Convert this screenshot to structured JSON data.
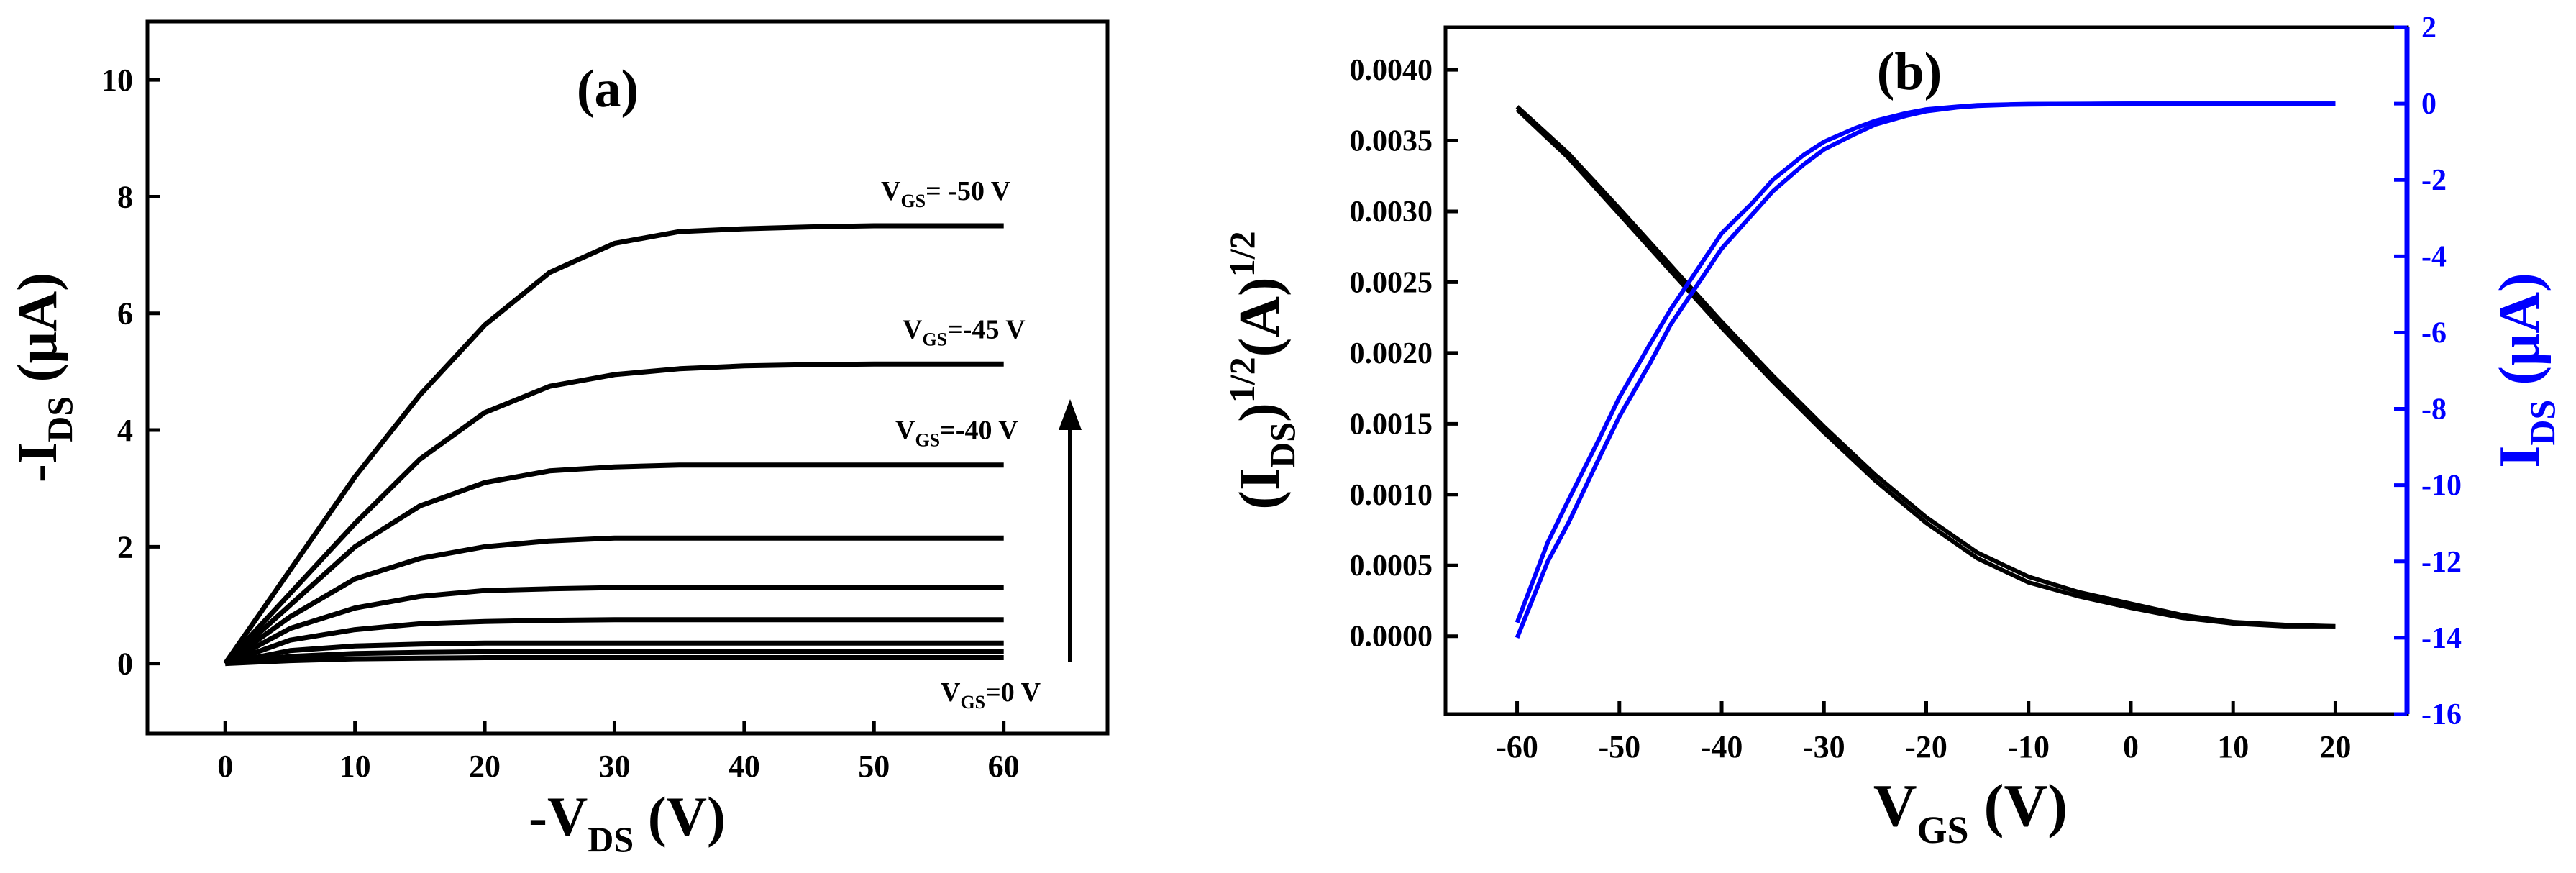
{
  "chart_data": [
    {
      "type": "line",
      "panel_label": "(a)",
      "xlabel": {
        "main": "-V",
        "sub": "DS",
        "unit": " (V)"
      },
      "ylabel": {
        "main": "-I",
        "sub": "DS",
        "unit": " (μA)"
      },
      "xlim": [
        -6,
        68
      ],
      "ylim": [
        -1.2,
        11
      ],
      "xticks": [
        0,
        10,
        20,
        30,
        40,
        50,
        60
      ],
      "yticks": [
        0,
        2,
        4,
        6,
        8,
        10
      ],
      "line_color": "#000000",
      "x": [
        0,
        5,
        10,
        15,
        20,
        25,
        30,
        35,
        40,
        45,
        50,
        55,
        60
      ],
      "series": [
        {
          "label_main": "",
          "label_sub": "",
          "label_val": "",
          "values": [
            0,
            0.05,
            0.08,
            0.09,
            0.1,
            0.1,
            0.1,
            0.1,
            0.1,
            0.1,
            0.1,
            0.1,
            0.1
          ]
        },
        {
          "label_main": "",
          "label_sub": "",
          "label_val": "",
          "values": [
            0,
            0.12,
            0.17,
            0.19,
            0.2,
            0.2,
            0.2,
            0.2,
            0.2,
            0.2,
            0.2,
            0.2,
            0.2
          ]
        },
        {
          "label_main": "",
          "label_sub": "",
          "label_val": "",
          "values": [
            0,
            0.22,
            0.3,
            0.33,
            0.35,
            0.35,
            0.35,
            0.35,
            0.35,
            0.35,
            0.35,
            0.35,
            0.35
          ]
        },
        {
          "label_main": "",
          "label_sub": "",
          "label_val": "",
          "values": [
            0,
            0.4,
            0.58,
            0.68,
            0.72,
            0.74,
            0.75,
            0.75,
            0.75,
            0.75,
            0.75,
            0.75,
            0.75
          ]
        },
        {
          "label_main": "",
          "label_sub": "",
          "label_val": "",
          "values": [
            0,
            0.6,
            0.95,
            1.15,
            1.25,
            1.28,
            1.3,
            1.3,
            1.3,
            1.3,
            1.3,
            1.3,
            1.3
          ]
        },
        {
          "label_main": "",
          "label_sub": "",
          "label_val": "",
          "values": [
            0,
            0.8,
            1.45,
            1.8,
            2.0,
            2.1,
            2.15,
            2.15,
            2.15,
            2.15,
            2.15,
            2.15,
            2.15
          ]
        },
        {
          "label_main": "V",
          "label_sub": "GS",
          "label_val": "=-40 V",
          "values": [
            0,
            1.0,
            2.0,
            2.7,
            3.1,
            3.3,
            3.37,
            3.4,
            3.4,
            3.4,
            3.4,
            3.4,
            3.4
          ]
        },
        {
          "label_main": "V",
          "label_sub": "GS",
          "label_val": "=-45 V",
          "values": [
            0,
            1.2,
            2.4,
            3.5,
            4.3,
            4.75,
            4.95,
            5.05,
            5.1,
            5.12,
            5.13,
            5.13,
            5.13
          ]
        },
        {
          "label_main": "V",
          "label_sub": "GS",
          "label_val": "= -50 V",
          "values": [
            0,
            1.6,
            3.2,
            4.6,
            5.8,
            6.7,
            7.2,
            7.4,
            7.45,
            7.48,
            7.5,
            7.5,
            7.5
          ]
        }
      ],
      "annotation_bottom": {
        "main": "V",
        "sub": "GS",
        "val": "=0 V"
      }
    },
    {
      "type": "line",
      "panel_label": "(b)",
      "xlabel": {
        "main": "V",
        "sub": "GS",
        "unit": " (V)"
      },
      "ylabel_left": {
        "p1": "(I",
        "sub": "DS",
        "p2": ")",
        "sup1": "1/2",
        "p3": "(A)",
        "sup2": "1/2"
      },
      "ylabel_right": {
        "main": "I",
        "sub": "DS",
        "unit": " (μA)"
      },
      "xlim": [
        -67,
        27
      ],
      "ylim_left": [
        -0.00055,
        0.0043
      ],
      "ylim_right": [
        -16,
        2
      ],
      "xticks": [
        -60,
        -50,
        -40,
        -30,
        -20,
        -10,
        0,
        10,
        20
      ],
      "yticks_left": [
        "0.0000",
        "0.0005",
        "0.0010",
        "0.0015",
        "0.0020",
        "0.0025",
        "0.0030",
        "0.0035",
        "0.0040"
      ],
      "yticks_right": [
        2,
        0,
        -2,
        -4,
        -6,
        -8,
        -10,
        -12,
        -14,
        -16
      ],
      "left_color": "#000000",
      "right_color": "#0000ff",
      "sqrt_forward": {
        "x": [
          -60,
          -55,
          -50,
          -45,
          -40,
          -35,
          -30,
          -25,
          -20,
          -15,
          -10,
          -5,
          0,
          5,
          10,
          15,
          20
        ],
        "y": [
          0.00372,
          0.00338,
          0.00298,
          0.00258,
          0.00218,
          0.0018,
          0.00144,
          0.0011,
          0.0008,
          0.00055,
          0.00038,
          0.00028,
          0.0002,
          0.00013,
          9e-05,
          7e-05,
          7e-05
        ]
      },
      "sqrt_reverse": {
        "x": [
          -60,
          -55,
          -50,
          -45,
          -40,
          -35,
          -30,
          -25,
          -20,
          -15,
          -10,
          -5,
          0,
          5,
          10,
          15,
          20
        ],
        "y": [
          0.00374,
          0.00341,
          0.00302,
          0.00262,
          0.00222,
          0.00184,
          0.00148,
          0.00114,
          0.00084,
          0.00059,
          0.00042,
          0.00031,
          0.00023,
          0.00015,
          0.0001,
          8e-05,
          7e-05
        ]
      },
      "ids_forward": {
        "x": [
          -60,
          -57,
          -55,
          -52,
          -50,
          -47,
          -45,
          -42,
          -40,
          -37,
          -35,
          -32,
          -30,
          -27,
          -25,
          -22,
          -20,
          -17,
          -15,
          -12,
          -10,
          -5,
          0,
          5,
          10,
          15,
          20
        ],
        "y": [
          -14.0,
          -12.0,
          -11.0,
          -9.3,
          -8.2,
          -6.8,
          -5.8,
          -4.6,
          -3.8,
          -2.9,
          -2.3,
          -1.6,
          -1.2,
          -0.8,
          -0.55,
          -0.32,
          -0.2,
          -0.1,
          -0.06,
          -0.03,
          -0.02,
          -0.01,
          0,
          0,
          0,
          0,
          0
        ]
      },
      "ids_reverse": {
        "x": [
          -60,
          -57,
          -55,
          -52,
          -50,
          -47,
          -45,
          -42,
          -40,
          -37,
          -35,
          -32,
          -30,
          -27,
          -25,
          -22,
          -20,
          -17,
          -15,
          -12,
          -10,
          -5,
          0,
          5,
          10,
          15,
          20
        ],
        "y": [
          -13.6,
          -11.5,
          -10.4,
          -8.8,
          -7.7,
          -6.3,
          -5.4,
          -4.2,
          -3.4,
          -2.6,
          -2.0,
          -1.35,
          -1.0,
          -0.65,
          -0.45,
          -0.25,
          -0.15,
          -0.08,
          -0.04,
          -0.02,
          -0.01,
          -0.005,
          0,
          0,
          0,
          0,
          0
        ]
      }
    }
  ]
}
